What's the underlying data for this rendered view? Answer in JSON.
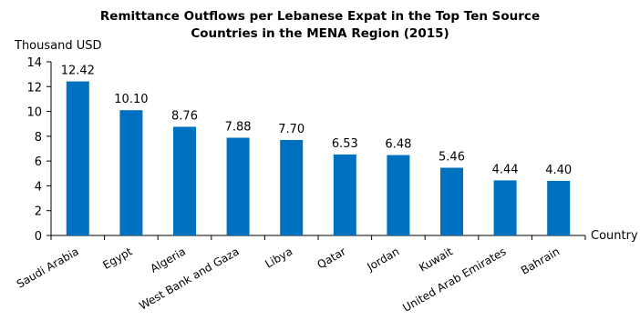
{
  "chart_data": {
    "type": "bar",
    "title": [
      "Remittance Outflows per Lebanese Expat in the Top Ten Source",
      "Countries in the MENA Region (2015)"
    ],
    "ylabel": "Thousand USD",
    "xlabel": "Country",
    "ylim": [
      0,
      14
    ],
    "yticks": [
      0,
      2,
      4,
      6,
      8,
      10,
      12,
      14
    ],
    "categories": [
      "Saudi Arabia",
      "Egypt",
      "Algeria",
      "West Bank and Gaza",
      "Libya",
      "Qatar",
      "Jordan",
      "Kuwait",
      "United Arab Emirates",
      "Bahrain"
    ],
    "values": [
      12.42,
      10.1,
      8.76,
      7.88,
      7.7,
      6.53,
      6.48,
      5.46,
      4.44,
      4.4
    ],
    "data_labels": [
      "12.42",
      "10.10",
      "8.76",
      "7.88",
      "7.70",
      "6.53",
      "6.48",
      "5.46",
      "4.44",
      "4.40"
    ],
    "bar_color": "#0070c0",
    "grid": false,
    "legend": "none"
  }
}
